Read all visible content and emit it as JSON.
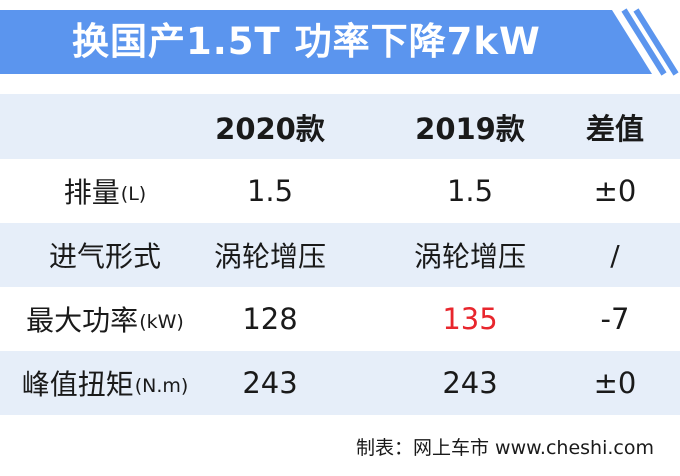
{
  "banner": {
    "title": "换国产1.5T 功率下降7kW",
    "color": "#5b95ee"
  },
  "table": {
    "headers": [
      "",
      "2020款",
      "2019款",
      "差值"
    ],
    "rows": [
      {
        "label": "排量",
        "unit": "(L)",
        "v2020": "1.5",
        "v2019": "1.5",
        "diff": "±0"
      },
      {
        "label": "进气形式",
        "unit": "",
        "v2020": "涡轮增压",
        "v2019": "涡轮增压",
        "diff": "/"
      },
      {
        "label": "最大功率",
        "unit": "(kW)",
        "v2020": "128",
        "v2019": "135",
        "diff": "-7",
        "highlight_color": "#e8262d"
      },
      {
        "label": "峰值扭矩",
        "unit": "(N.m)",
        "v2020": "243",
        "v2019": "243",
        "diff": "±0"
      }
    ],
    "shade_color": "#e6eef9"
  },
  "footer": {
    "text": "制表：网上车市 www.cheshi.com"
  }
}
